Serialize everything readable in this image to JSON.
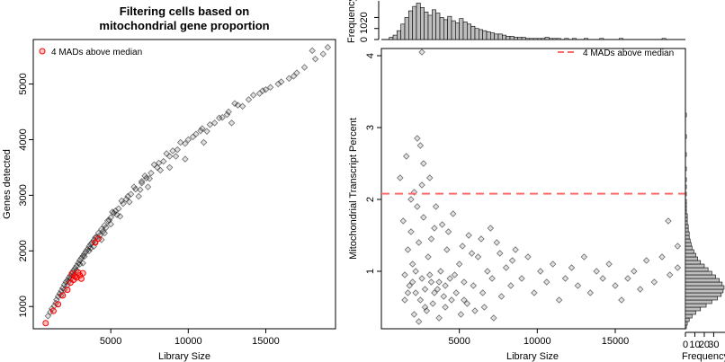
{
  "chart_data": [
    {
      "type": "scatter",
      "title_line1": "Filtering cells based on",
      "title_line2": "mitochondrial gene proportion",
      "xlabel": "Library Size",
      "ylabel": "Genes detected",
      "xlim": [
        0,
        19500
      ],
      "ylim": [
        600,
        5800
      ],
      "x_ticks": [
        5000,
        10000,
        15000
      ],
      "y_ticks": [
        1000,
        2000,
        3000,
        4000,
        5000
      ],
      "legend": {
        "label": "4 MADs above median",
        "position": "top-left",
        "color": "#ff0000"
      },
      "series": [
        {
          "role": "cells",
          "color": "#000000",
          "points": [
            [
              950,
              830
            ],
            [
              1100,
              900
            ],
            [
              1200,
              960
            ],
            [
              1350,
              1010
            ],
            [
              1450,
              1060
            ],
            [
              1500,
              1120
            ],
            [
              1600,
              1180
            ],
            [
              1700,
              1230
            ],
            [
              1800,
              1280
            ],
            [
              1900,
              1330
            ],
            [
              2000,
              1390
            ],
            [
              2100,
              1440
            ],
            [
              2200,
              1470
            ],
            [
              2300,
              1520
            ],
            [
              2400,
              1560
            ],
            [
              2500,
              1610
            ],
            [
              2600,
              1650
            ],
            [
              2700,
              1690
            ],
            [
              2800,
              1730
            ],
            [
              2900,
              1780
            ],
            [
              3000,
              1830
            ],
            [
              3100,
              1870
            ],
            [
              3200,
              1910
            ],
            [
              3300,
              1950
            ],
            [
              3400,
              1990
            ],
            [
              3500,
              2030
            ],
            [
              3600,
              2080
            ],
            [
              3700,
              2120
            ],
            [
              3800,
              2150
            ],
            [
              3900,
              2190
            ],
            [
              4000,
              2240
            ],
            [
              4200,
              2320
            ],
            [
              4400,
              2390
            ],
            [
              4600,
              2460
            ],
            [
              4800,
              2540
            ],
            [
              5000,
              2600
            ],
            [
              5200,
              2680
            ],
            [
              5500,
              2760
            ],
            [
              5800,
              2850
            ],
            [
              6000,
              2930
            ],
            [
              6300,
              3020
            ],
            [
              6600,
              3110
            ],
            [
              7000,
              3220
            ],
            [
              7300,
              3310
            ],
            [
              7600,
              3400
            ],
            [
              8000,
              3500
            ],
            [
              8400,
              3610
            ],
            [
              8800,
              3700
            ],
            [
              9300,
              3820
            ],
            [
              9800,
              3930
            ],
            [
              10300,
              4050
            ],
            [
              10800,
              4160
            ],
            [
              11400,
              4270
            ],
            [
              12000,
              4390
            ],
            [
              12600,
              4500
            ],
            [
              13200,
              4620
            ],
            [
              13900,
              4720
            ],
            [
              14600,
              4830
            ],
            [
              15300,
              4940
            ],
            [
              16000,
              5040
            ],
            [
              16800,
              5140
            ],
            [
              17500,
              5300
            ],
            [
              18200,
              5450
            ],
            [
              18700,
              5540
            ],
            [
              19000,
              5660
            ],
            [
              1800,
              1200
            ],
            [
              2000,
              1300
            ],
            [
              2300,
              1450
            ],
            [
              2600,
              1560
            ],
            [
              3000,
              1760
            ],
            [
              3300,
              1900
            ],
            [
              3700,
              2050
            ],
            [
              4100,
              2250
            ],
            [
              4500,
              2350
            ],
            [
              5100,
              2700
            ],
            [
              5700,
              2900
            ],
            [
              6500,
              3150
            ],
            [
              7200,
              3350
            ],
            [
              7800,
              3550
            ],
            [
              8600,
              3750
            ],
            [
              9500,
              3950
            ],
            [
              10500,
              4100
            ],
            [
              11200,
              4150
            ],
            [
              12500,
              4450
            ],
            [
              13500,
              4600
            ],
            [
              14200,
              4800
            ],
            [
              15000,
              4900
            ],
            [
              15800,
              5000
            ],
            [
              17000,
              5200
            ],
            [
              18000,
              5600
            ],
            [
              2200,
              1380
            ],
            [
              2800,
              1650
            ],
            [
              3600,
              2000
            ],
            [
              4300,
              2280
            ],
            [
              4900,
              2550
            ],
            [
              5400,
              2650
            ],
            [
              6100,
              2980
            ],
            [
              6900,
              3100
            ],
            [
              7500,
              3300
            ],
            [
              8200,
              3450
            ],
            [
              9000,
              3800
            ],
            [
              10000,
              4000
            ],
            [
              11700,
              4300
            ],
            [
              13000,
              4650
            ],
            [
              14800,
              4880
            ],
            [
              16500,
              5100
            ],
            [
              3200,
              1780
            ],
            [
              4000,
              2150
            ],
            [
              4700,
              2420
            ],
            [
              5300,
              2720
            ],
            [
              6200,
              2880
            ],
            [
              7000,
              3250
            ],
            [
              8100,
              3580
            ],
            [
              9200,
              3700
            ],
            [
              10900,
              4200
            ],
            [
              12200,
              4400
            ],
            [
              4400,
              2200
            ],
            [
              5000,
              2480
            ],
            [
              5600,
              2620
            ],
            [
              6800,
              2980
            ],
            [
              7400,
              3150
            ],
            [
              8800,
              3500
            ],
            [
              9800,
              3650
            ],
            [
              11000,
              3950
            ],
            [
              12800,
              4300
            ],
            [
              2400,
              1500
            ],
            [
              3900,
              2080
            ],
            [
              4600,
              2320
            ]
          ]
        },
        {
          "role": "4 MADs above median",
          "color": "#ff0000",
          "points": [
            [
              800,
              700
            ],
            [
              1300,
              920
            ],
            [
              1600,
              1040
            ],
            [
              1900,
              1200
            ],
            [
              2200,
              1300
            ],
            [
              2400,
              1430
            ],
            [
              2600,
              1480
            ],
            [
              2800,
              1520
            ],
            [
              3000,
              1560
            ],
            [
              3200,
              1600
            ],
            [
              2500,
              1590
            ],
            [
              2700,
              1540
            ],
            [
              4000,
              2150
            ],
            [
              4200,
              2220
            ],
            [
              3100,
              1500
            ],
            [
              2900,
              1610
            ]
          ]
        }
      ]
    },
    {
      "type": "scatter",
      "title": "",
      "xlabel": "Library Size",
      "ylabel": "Mitochondrial Transcript Percent",
      "xlim": [
        0,
        19500
      ],
      "ylim": [
        0.2,
        4.1
      ],
      "x_ticks": [
        5000,
        10000,
        15000
      ],
      "y_ticks": [
        1,
        2,
        3,
        4
      ],
      "threshold": 2.08,
      "legend": {
        "label": "4 MADs above median",
        "position": "top-right",
        "color": "#ff4d4d"
      },
      "points": [
        [
          1500,
          0.6
        ],
        [
          1800,
          0.8
        ],
        [
          2000,
          1.1
        ],
        [
          2200,
          0.7
        ],
        [
          2400,
          1.4
        ],
        [
          2600,
          0.9
        ],
        [
          2800,
          0.5
        ],
        [
          3000,
          1.2
        ],
        [
          3200,
          0.85
        ],
        [
          3400,
          1.6
        ],
        [
          3600,
          0.75
        ],
        [
          3800,
          1.0
        ],
        [
          4000,
          0.65
        ],
        [
          4200,
          1.3
        ],
        [
          4400,
          0.9
        ],
        [
          4600,
          1.8
        ],
        [
          4800,
          0.7
        ],
        [
          5000,
          1.1
        ],
        [
          5300,
          0.6
        ],
        [
          5600,
          1.5
        ],
        [
          5900,
          0.8
        ],
        [
          6200,
          1.2
        ],
        [
          6500,
          0.7
        ],
        [
          6800,
          1.0
        ],
        [
          7100,
          0.9
        ],
        [
          7400,
          1.4
        ],
        [
          7700,
          0.65
        ],
        [
          8000,
          1.05
        ],
        [
          8300,
          0.8
        ],
        [
          8600,
          1.3
        ],
        [
          9000,
          0.9
        ],
        [
          9400,
          1.2
        ],
        [
          9800,
          0.7
        ],
        [
          10200,
          1.0
        ],
        [
          10600,
          0.85
        ],
        [
          11000,
          1.1
        ],
        [
          11400,
          0.6
        ],
        [
          11800,
          0.9
        ],
        [
          12200,
          1.05
        ],
        [
          12600,
          0.8
        ],
        [
          13000,
          1.2
        ],
        [
          13400,
          0.7
        ],
        [
          13800,
          1.0
        ],
        [
          14200,
          0.9
        ],
        [
          14600,
          1.1
        ],
        [
          15000,
          0.8
        ],
        [
          15400,
          0.6
        ],
        [
          15800,
          0.9
        ],
        [
          16200,
          1.0
        ],
        [
          16600,
          0.75
        ],
        [
          17000,
          1.15
        ],
        [
          17500,
          0.85
        ],
        [
          18000,
          1.2
        ],
        [
          18500,
          0.95
        ],
        [
          19000,
          1.35
        ],
        [
          1200,
          2.3
        ],
        [
          1600,
          2.6
        ],
        [
          2100,
          2.1
        ],
        [
          2700,
          2.5
        ],
        [
          2500,
          2.75
        ],
        [
          2300,
          2.85
        ],
        [
          3100,
          2.3
        ],
        [
          1900,
          2.0
        ],
        [
          2600,
          2.2
        ],
        [
          3500,
          1.9
        ],
        [
          1700,
          1.3
        ],
        [
          2100,
          0.4
        ],
        [
          2400,
          0.3
        ],
        [
          2900,
          0.45
        ],
        [
          3300,
          0.55
        ],
        [
          3700,
          0.35
        ],
        [
          4100,
          0.5
        ],
        [
          4500,
          0.6
        ],
        [
          5100,
          0.4
        ],
        [
          5500,
          0.55
        ],
        [
          6000,
          0.45
        ],
        [
          6600,
          0.5
        ],
        [
          7200,
          0.35
        ],
        [
          2600,
          4.05
        ],
        [
          1400,
          1.7
        ],
        [
          1900,
          1.55
        ],
        [
          2300,
          1.9
        ],
        [
          2700,
          1.75
        ],
        [
          3200,
          1.45
        ],
        [
          3900,
          1.65
        ],
        [
          4300,
          1.55
        ],
        [
          5200,
          1.35
        ],
        [
          5800,
          1.25
        ],
        [
          6400,
          1.45
        ],
        [
          7000,
          1.6
        ],
        [
          7600,
          1.25
        ],
        [
          8400,
          1.15
        ],
        [
          1500,
          0.95
        ],
        [
          1700,
          0.7
        ],
        [
          2000,
          0.85
        ],
        [
          2200,
          1.0
        ],
        [
          2500,
          0.6
        ],
        [
          2800,
          0.75
        ],
        [
          3100,
          0.95
        ],
        [
          3400,
          0.7
        ],
        [
          3700,
          0.85
        ],
        [
          4100,
          0.8
        ],
        [
          4700,
          0.95
        ],
        [
          5300,
          0.85
        ],
        [
          18400,
          1.7
        ],
        [
          19000,
          1.05
        ]
      ]
    },
    {
      "type": "bar",
      "title": "",
      "role": "top marginal histogram",
      "xlabel": "",
      "ylabel": "Frequency",
      "ylim": [
        0,
        35
      ],
      "y_ticks": [
        0,
        10,
        20
      ],
      "bin_width": 250,
      "x_start": 500,
      "values": [
        2,
        4,
        8,
        14,
        20,
        26,
        30,
        33,
        29,
        25,
        22,
        27,
        24,
        20,
        18,
        21,
        17,
        15,
        19,
        16,
        14,
        12,
        10,
        9,
        8,
        7,
        6,
        5,
        5,
        4,
        3,
        3,
        2,
        2,
        2,
        1,
        1,
        1,
        1,
        1,
        2,
        1,
        1,
        1,
        0,
        1,
        0,
        1,
        0,
        0,
        1,
        0,
        0,
        0,
        1,
        0,
        0,
        0,
        0,
        1,
        0,
        0,
        0,
        0,
        0,
        0,
        0,
        0,
        0,
        0,
        1,
        0,
        0,
        0
      ]
    },
    {
      "type": "bar",
      "title": "",
      "role": "right marginal histogram",
      "xlabel": "Frequency",
      "ylabel": "",
      "xlim": [
        0,
        42
      ],
      "x_ticks": [
        0,
        10,
        20,
        30
      ],
      "bin_width": 0.05,
      "y_start": 0.2,
      "values": [
        1,
        2,
        4,
        7,
        11,
        16,
        22,
        28,
        34,
        38,
        40,
        41,
        39,
        36,
        32,
        28,
        24,
        20,
        16,
        13,
        11,
        9,
        7,
        6,
        5,
        4,
        4,
        3,
        3,
        2,
        2,
        2,
        1,
        1,
        1,
        1,
        0,
        1,
        0,
        1,
        0,
        1,
        0,
        0,
        1,
        0,
        0,
        0,
        1,
        0,
        0,
        0,
        0,
        1,
        0,
        0,
        0,
        0,
        0,
        1
      ]
    }
  ]
}
